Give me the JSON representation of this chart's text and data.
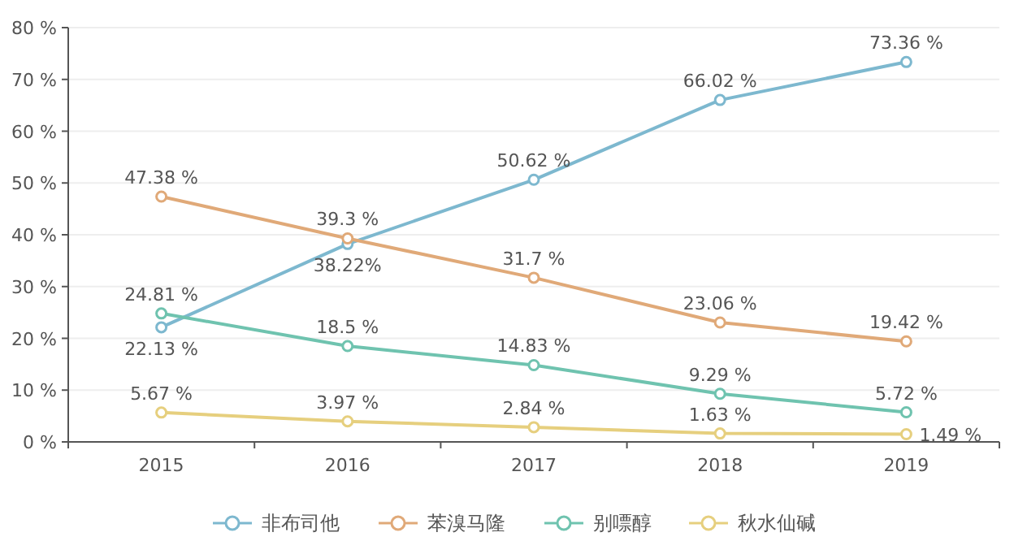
{
  "chart_data": {
    "type": "line",
    "categories": [
      "2015",
      "2016",
      "2017",
      "2018",
      "2019"
    ],
    "ylim": [
      0,
      80
    ],
    "yticks": [
      {
        "value": 0,
        "label": "0 %"
      },
      {
        "value": 10,
        "label": "10 %"
      },
      {
        "value": 20,
        "label": "20 %"
      },
      {
        "value": 30,
        "label": "30 %"
      },
      {
        "value": 40,
        "label": "40 %"
      },
      {
        "value": 50,
        "label": "50 %"
      },
      {
        "value": 60,
        "label": "60 %"
      },
      {
        "value": 70,
        "label": "70 %"
      },
      {
        "value": 80,
        "label": "80 %"
      }
    ],
    "grid": "y",
    "legend": "bottom",
    "marker": "circle",
    "line_style": "solid",
    "series": [
      {
        "name": "非布司他",
        "color": "#7db8cf",
        "values": [
          22.13,
          38.22,
          50.62,
          66.02,
          73.36
        ],
        "value_labels": [
          "22.13 %",
          "38.22%",
          "50.62 %",
          "66.02 %",
          "73.36 %"
        ]
      },
      {
        "name": "苯溴马隆",
        "color": "#e0a978",
        "values": [
          47.38,
          39.3,
          31.7,
          23.06,
          19.42
        ],
        "value_labels": [
          "47.38 %",
          "39.3 %",
          "31.7 %",
          "23.06 %",
          "19.42 %"
        ]
      },
      {
        "name": "别嘌醇",
        "color": "#6fc3af",
        "values": [
          24.81,
          18.5,
          14.83,
          9.29,
          5.72
        ],
        "value_labels": [
          "24.81 %",
          "18.5 %",
          "14.83 %",
          "9.29 %",
          "5.72 %"
        ]
      },
      {
        "name": "秋水仙碱",
        "color": "#e6cf7e",
        "values": [
          5.67,
          3.97,
          2.84,
          1.63,
          1.49
        ],
        "value_labels": [
          "5.67 %",
          "3.97 %",
          "2.84 %",
          "1.63 %",
          "1.49 %"
        ]
      }
    ]
  }
}
